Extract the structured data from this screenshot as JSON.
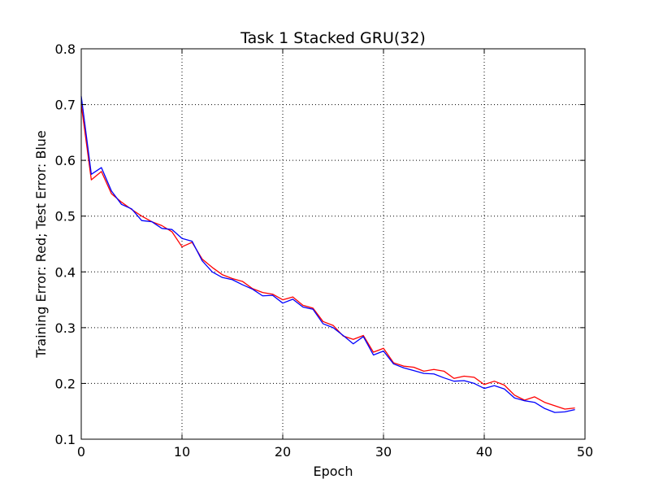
{
  "chart_data": {
    "type": "line",
    "title": "Task 1 Stacked GRU(32)",
    "xlabel": "Epoch",
    "ylabel": "Training Error: Red; Test Error: Blue",
    "xlim": [
      0,
      50
    ],
    "ylim": [
      0.1,
      0.8
    ],
    "xticks": [
      "0",
      "10",
      "20",
      "30",
      "40",
      "50"
    ],
    "yticks": [
      "0.1",
      "0.2",
      "0.3",
      "0.4",
      "0.5",
      "0.6",
      "0.7",
      "0.8"
    ],
    "grid": true,
    "series": [
      {
        "color": "#ff0000",
        "x": [
          0,
          1,
          2,
          3,
          4,
          5,
          6,
          7,
          8,
          9,
          10,
          11,
          12,
          13,
          14,
          15,
          16,
          17,
          18,
          19,
          20,
          21,
          22,
          23,
          24,
          25,
          26,
          27,
          28,
          29,
          30,
          31,
          32,
          33,
          34,
          35,
          36,
          37,
          38,
          39,
          40,
          41,
          42,
          43,
          44,
          45,
          46,
          47,
          48,
          49
        ],
        "values": [
          0.7,
          0.565,
          0.58,
          0.54,
          0.525,
          0.512,
          0.5,
          0.49,
          0.483,
          0.472,
          0.445,
          0.453,
          0.423,
          0.408,
          0.395,
          0.388,
          0.383,
          0.37,
          0.363,
          0.36,
          0.35,
          0.355,
          0.34,
          0.335,
          0.311,
          0.304,
          0.285,
          0.279,
          0.286,
          0.256,
          0.263,
          0.237,
          0.231,
          0.229,
          0.222,
          0.225,
          0.222,
          0.209,
          0.213,
          0.211,
          0.198,
          0.204,
          0.197,
          0.179,
          0.17,
          0.176,
          0.166,
          0.16,
          0.154,
          0.156
        ]
      },
      {
        "color": "#0000ff",
        "x": [
          0,
          1,
          2,
          3,
          4,
          5,
          6,
          7,
          8,
          9,
          10,
          11,
          12,
          13,
          14,
          15,
          16,
          17,
          18,
          19,
          20,
          21,
          22,
          23,
          24,
          25,
          26,
          27,
          28,
          29,
          30,
          31,
          32,
          33,
          34,
          35,
          36,
          37,
          38,
          39,
          40,
          41,
          42,
          43,
          44,
          45,
          46,
          47,
          48,
          49
        ],
        "values": [
          0.715,
          0.575,
          0.587,
          0.545,
          0.521,
          0.513,
          0.492,
          0.49,
          0.478,
          0.476,
          0.46,
          0.455,
          0.42,
          0.4,
          0.39,
          0.386,
          0.377,
          0.369,
          0.357,
          0.358,
          0.344,
          0.351,
          0.337,
          0.333,
          0.307,
          0.3,
          0.286,
          0.271,
          0.284,
          0.251,
          0.258,
          0.235,
          0.228,
          0.223,
          0.218,
          0.217,
          0.21,
          0.204,
          0.205,
          0.2,
          0.191,
          0.196,
          0.19,
          0.174,
          0.169,
          0.166,
          0.155,
          0.148,
          0.149,
          0.153
        ]
      }
    ]
  }
}
